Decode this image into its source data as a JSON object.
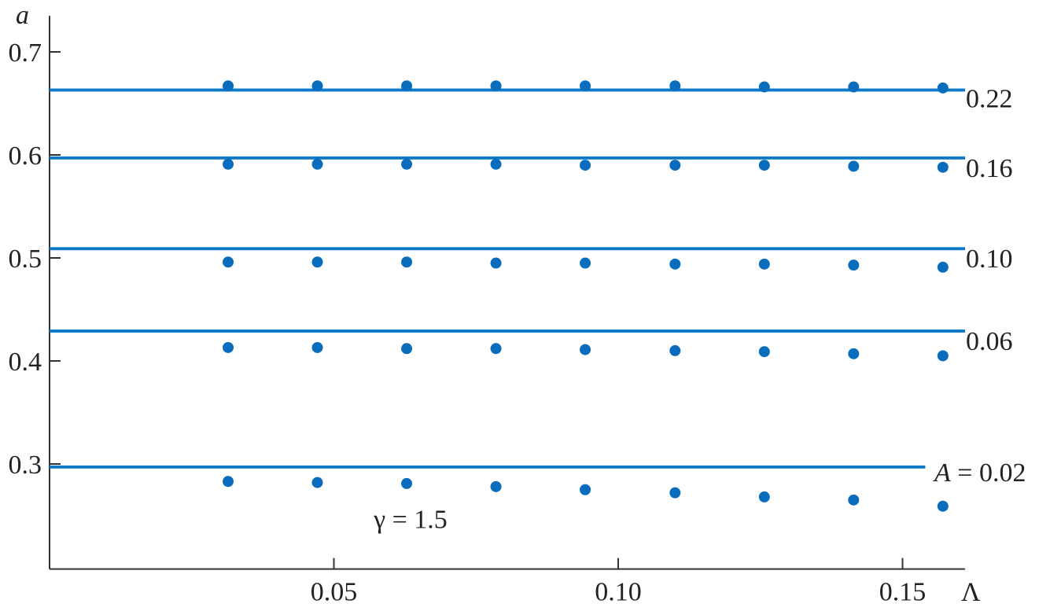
{
  "chart_data": {
    "type": "scatter",
    "title": "",
    "xlabel": "Λ",
    "ylabel": "a",
    "xlim": [
      0,
      0.161
    ],
    "ylim": [
      0.198,
      0.735
    ],
    "x_ticks": [
      {
        "value": 0.05,
        "label": "0.05"
      },
      {
        "value": 0.1,
        "label": "0.10"
      },
      {
        "value": 0.15,
        "label": "0.15"
      }
    ],
    "y_ticks": [
      {
        "value": 0.3,
        "label": "0.3"
      },
      {
        "value": 0.4,
        "label": "0.4"
      },
      {
        "value": 0.5,
        "label": "0.5"
      },
      {
        "value": 0.6,
        "label": "0.6"
      },
      {
        "value": 0.7,
        "label": "0.7"
      }
    ],
    "grid": false,
    "colors": {
      "line": "#1a8ad4",
      "points": "#0a6cbc",
      "axis": "#333333"
    },
    "x": [
      0.0314,
      0.0471,
      0.0628,
      0.0785,
      0.0942,
      0.11,
      0.1257,
      0.1414,
      0.1571
    ],
    "series": [
      {
        "label": "0.22",
        "line_value": 0.663,
        "line_xmax": 0.161,
        "values": [
          0.667,
          0.667,
          0.667,
          0.667,
          0.667,
          0.667,
          0.666,
          0.666,
          0.665
        ]
      },
      {
        "label": "0.16",
        "line_value": 0.597,
        "line_xmax": 0.161,
        "values": [
          0.591,
          0.591,
          0.591,
          0.591,
          0.59,
          0.59,
          0.59,
          0.589,
          0.588
        ]
      },
      {
        "label": "0.10",
        "line_value": 0.509,
        "line_xmax": 0.161,
        "values": [
          0.496,
          0.496,
          0.496,
          0.495,
          0.495,
          0.494,
          0.494,
          0.493,
          0.491
        ]
      },
      {
        "label": "0.06",
        "line_value": 0.429,
        "line_xmax": 0.161,
        "values": [
          0.413,
          0.413,
          0.412,
          0.412,
          0.411,
          0.41,
          0.409,
          0.407,
          0.405
        ]
      },
      {
        "label": "A = 0.02",
        "line_value": 0.297,
        "line_xmax": 0.154,
        "values": [
          0.283,
          0.282,
          0.281,
          0.278,
          0.275,
          0.272,
          0.268,
          0.265,
          0.259
        ]
      }
    ],
    "annotations": [
      {
        "text": "γ = 1.5",
        "x": 0.057,
        "y": 0.247
      }
    ]
  }
}
